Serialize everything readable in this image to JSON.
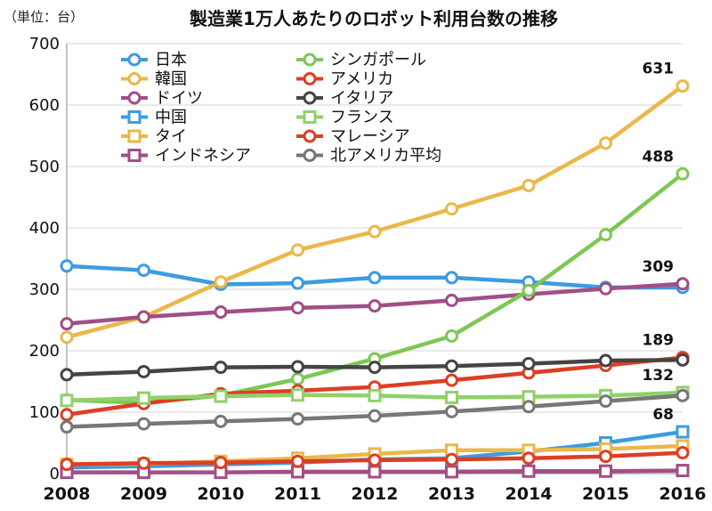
{
  "chart_data": {
    "type": "line",
    "title": "製造業1万人あたりのロボット利用台数の推移",
    "unit_label": "（単位：台）",
    "x": [
      "2008",
      "2009",
      "2010",
      "2011",
      "2012",
      "2013",
      "2014",
      "2015",
      "2016"
    ],
    "ylim": [
      0,
      700
    ],
    "yticks": [
      0,
      100,
      200,
      300,
      400,
      500,
      600,
      700
    ],
    "grid": true,
    "legend_position": "top-left",
    "series": [
      {
        "name": "日本",
        "color": "#3d9be0",
        "marker": "circle",
        "values": [
          338,
          331,
          308,
          310,
          319,
          319,
          312,
          303,
          303
        ]
      },
      {
        "name": "韓国",
        "color": "#eab84a",
        "marker": "circle",
        "values": [
          222,
          255,
          312,
          364,
          394,
          431,
          469,
          538,
          631
        ]
      },
      {
        "name": "ドイツ",
        "color": "#a24e86",
        "marker": "circle",
        "values": [
          244,
          255,
          263,
          270,
          273,
          282,
          292,
          301,
          309
        ]
      },
      {
        "name": "中国",
        "color": "#3d9be0",
        "marker": "square",
        "values": [
          10,
          12,
          15,
          18,
          23,
          25,
          36,
          50,
          68
        ]
      },
      {
        "name": "タイ",
        "color": "#eab84a",
        "marker": "square",
        "values": [
          15,
          16,
          20,
          25,
          32,
          38,
          38,
          40,
          45
        ]
      },
      {
        "name": "インドネシア",
        "color": "#a24e86",
        "marker": "square",
        "values": [
          2,
          2,
          2,
          3,
          3,
          3,
          4,
          4,
          5
        ]
      },
      {
        "name": "シンガポール",
        "color": "#7cc854",
        "marker": "circle",
        "values": [
          120,
          115,
          127,
          154,
          187,
          224,
          298,
          389,
          488
        ]
      },
      {
        "name": "アメリカ",
        "color": "#dd3e26",
        "marker": "circle",
        "values": [
          96,
          114,
          130,
          135,
          141,
          152,
          164,
          176,
          189
        ]
      },
      {
        "name": "イタリア",
        "color": "#444444",
        "marker": "circle",
        "values": [
          161,
          166,
          173,
          174,
          173,
          175,
          179,
          184,
          185
        ]
      },
      {
        "name": "フランス",
        "color": "#8fd16a",
        "marker": "square",
        "values": [
          119,
          123,
          126,
          128,
          127,
          124,
          125,
          127,
          132
        ]
      },
      {
        "name": "マレーシア",
        "color": "#dd3e26",
        "marker": "circle",
        "values": [
          15,
          17,
          18,
          20,
          22,
          23,
          25,
          28,
          34
        ]
      },
      {
        "name": "北アメリカ平均",
        "color": "#777777",
        "marker": "circle",
        "values": [
          76,
          81,
          85,
          89,
          94,
          101,
          109,
          118,
          127
        ]
      }
    ],
    "annotations": [
      {
        "text": "631",
        "x": "2016",
        "y": 631
      },
      {
        "text": "488",
        "x": "2016",
        "y": 488
      },
      {
        "text": "309",
        "x": "2016",
        "y": 309
      },
      {
        "text": "189",
        "x": "2016",
        "y": 189
      },
      {
        "text": "132",
        "x": "2016",
        "y": 132
      },
      {
        "text": "68",
        "x": "2016",
        "y": 68
      }
    ]
  }
}
